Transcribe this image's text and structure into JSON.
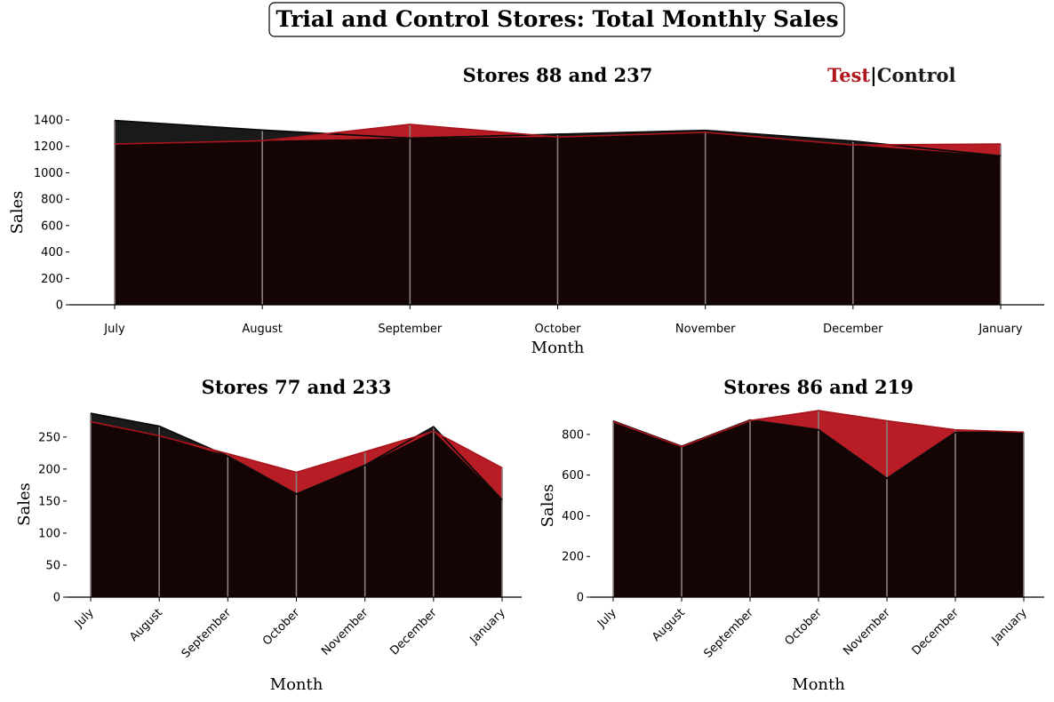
{
  "figure_title": "Trial and Control Stores: Total Monthly Sales",
  "legend": {
    "test_label": "Test",
    "separator": "|",
    "control_label": "Control"
  },
  "colors": {
    "test": "#b01820",
    "test_fill": "#b81c24",
    "test_line": "#a8141c",
    "control_fill": "#1a1a1a",
    "control_line": "#0a0a0a",
    "overlap": "#140404",
    "gridline": "#8a7f7f"
  },
  "chart_data": [
    {
      "type": "area",
      "title": "Stores 88 and 237",
      "xlabel": "Month",
      "ylabel": "Sales",
      "categories": [
        "July",
        "August",
        "September",
        "October",
        "November",
        "December",
        "January"
      ],
      "ylim": [
        0,
        1400
      ],
      "yticks": [
        0,
        200,
        400,
        600,
        800,
        1000,
        1200,
        1400
      ],
      "rotate_xticks": false,
      "series": [
        {
          "name": "Test",
          "values": [
            1218,
            1242,
            1367,
            1271,
            1306,
            1210,
            1218
          ]
        },
        {
          "name": "Control",
          "values": [
            1396,
            1323,
            1262,
            1292,
            1321,
            1240,
            1127
          ]
        }
      ]
    },
    {
      "type": "area",
      "title": "Stores 77 and 233",
      "xlabel": "Month",
      "ylabel": "Sales",
      "categories": [
        "July",
        "August",
        "September",
        "October",
        "November",
        "December",
        "January"
      ],
      "ylim": [
        0,
        290
      ],
      "yticks": [
        0,
        50,
        100,
        150,
        200,
        250
      ],
      "rotate_xticks": true,
      "series": [
        {
          "name": "Test",
          "values": [
            274,
            252,
            224,
            195,
            227,
            259,
            202
          ]
        },
        {
          "name": "Control",
          "values": [
            287,
            267,
            220,
            161,
            206,
            266,
            152
          ]
        }
      ]
    },
    {
      "type": "area",
      "title": "Stores 86 and 219",
      "xlabel": "Month",
      "ylabel": "Sales",
      "categories": [
        "July",
        "August",
        "September",
        "October",
        "November",
        "December",
        "January"
      ],
      "ylim": [
        0,
        900
      ],
      "yticks": [
        0,
        200,
        400,
        600,
        800
      ],
      "rotate_xticks": true,
      "series": [
        {
          "name": "Test",
          "values": [
            863,
            740,
            868,
            917,
            867,
            823,
            811
          ]
        },
        {
          "name": "Control",
          "values": [
            866,
            742,
            871,
            823,
            584,
            810,
            811
          ]
        }
      ]
    }
  ]
}
